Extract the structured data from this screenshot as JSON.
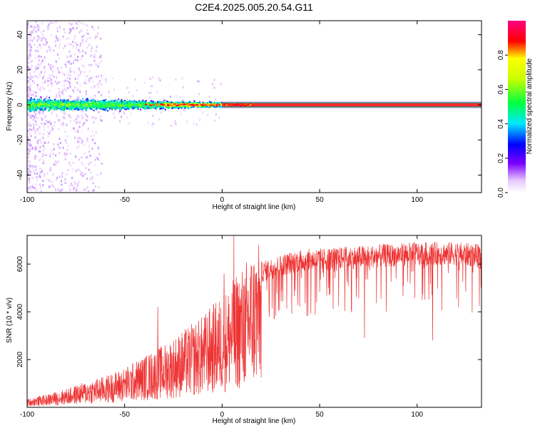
{
  "figure_title": "C2E4.2025.005.20.54.G11",
  "chart_data": [
    {
      "type": "heatmap",
      "xlabel": "Height of straight line (km)",
      "ylabel": "Frequency (Hz)",
      "xlim": [
        -100,
        133
      ],
      "ylim": [
        -50,
        48
      ],
      "xticks": [
        "-100",
        "-50",
        "0",
        "50",
        "100"
      ],
      "yticks": [
        "-40",
        "-20",
        "0",
        "20",
        "40"
      ],
      "colorbar": {
        "label": "Normalized spectral amplitude",
        "range": [
          0,
          1
        ],
        "ticks": [
          "0.0",
          "0.2",
          "0.4",
          "0.6",
          "0.8"
        ],
        "colormap": "rainbow (white-violet-blue-cyan-green-yellow-red-magenta)"
      },
      "description_values": {
        "central_ridge_frequency_hz": 0,
        "ridge_start_height_km": -100,
        "ridge_end_height_km": 133,
        "broadband_scatter_region_km": [
          -100,
          -65
        ]
      }
    },
    {
      "type": "line",
      "xlabel": "Height of straight line (km)",
      "ylabel": "SNR (10 * v/v)",
      "xlim": [
        -100,
        133
      ],
      "ylim": [
        0,
        7200
      ],
      "xticks": [
        "-100",
        "-50",
        "0",
        "50",
        "100"
      ],
      "yticks": [
        "2000",
        "4000",
        "6000"
      ],
      "series": [
        {
          "color": "#ee3333",
          "envelope_x": [
            -100,
            -90,
            -80,
            -70,
            -60,
            -50,
            -40,
            -30,
            -20,
            -10,
            -5,
            0,
            5,
            10,
            15,
            20,
            30,
            40,
            50,
            60,
            70,
            80,
            90,
            100,
            110,
            120,
            133
          ],
          "envelope_y": [
            300,
            450,
            650,
            900,
            1100,
            1400,
            1800,
            2200,
            2700,
            3200,
            3600,
            3900,
            4400,
            4900,
            5500,
            5800,
            6100,
            6300,
            6350,
            6400,
            6450,
            6500,
            6550,
            6600,
            6600,
            6600,
            6500
          ],
          "spikes": [
            {
              "x": 6,
              "y": 7200
            },
            {
              "x": 1,
              "y": 5600
            },
            {
              "x": -33,
              "y": 4200
            },
            {
              "x": 7,
              "y": 1000
            },
            {
              "x": 12,
              "y": 1300
            },
            {
              "x": 108,
              "y": 2800
            },
            {
              "x": 73,
              "y": 2900
            }
          ]
        }
      ]
    }
  ]
}
